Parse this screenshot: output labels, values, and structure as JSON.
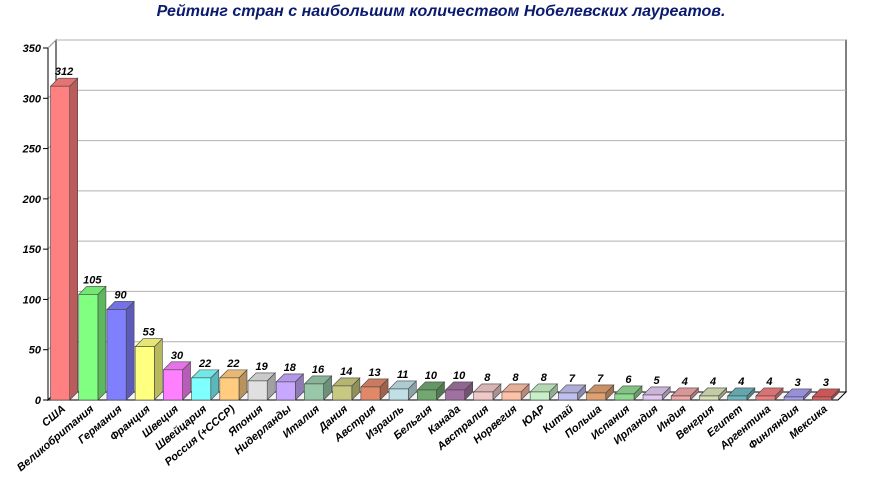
{
  "chart_data": {
    "type": "bar",
    "title": "Рейтинг стран с наибольшим количеством Нобелевских лауреатов.",
    "xlabel": "",
    "ylabel": "",
    "ylim": [
      0,
      350
    ],
    "yticks": [
      0,
      50,
      100,
      150,
      200,
      250,
      300,
      350
    ],
    "grid": true,
    "legend": "none",
    "style": "3d",
    "categories": [
      "США",
      "Великобритания",
      "Германия",
      "Франция",
      "Швеция",
      "Швейцария",
      "Россия (+СССР)",
      "Япония",
      "Нидерланды",
      "Италия",
      "Дания",
      "Австрия",
      "Израиль",
      "Бельгия",
      "Канада",
      "Австралия",
      "Норвегия",
      "ЮАР",
      "Китай",
      "Польша",
      "Испания",
      "Ирландия",
      "Индия",
      "Венгрия",
      "Египет",
      "Аргентина",
      "Финляндия",
      "Мексика"
    ],
    "values": [
      312,
      105,
      90,
      53,
      30,
      22,
      22,
      19,
      18,
      16,
      14,
      13,
      11,
      10,
      10,
      8,
      8,
      8,
      7,
      7,
      6,
      5,
      4,
      4,
      4,
      4,
      3,
      3
    ],
    "colors": [
      "#ff8080",
      "#80ff80",
      "#8080ff",
      "#ffff80",
      "#ff80ff",
      "#80ffff",
      "#ffcc80",
      "#e0e0e0",
      "#c8a8ff",
      "#98c8a8",
      "#c8c880",
      "#e08868",
      "#c0e0e8",
      "#70a870",
      "#a070a0",
      "#f0c8c8",
      "#ffc0a8",
      "#c8f0c8",
      "#c0c0f0",
      "#e0a070",
      "#90d890",
      "#e0c8f0",
      "#f0a8a8",
      "#d8e0b8",
      "#70b8c0",
      "#f08080",
      "#a8a0f0",
      "#e06060"
    ]
  }
}
